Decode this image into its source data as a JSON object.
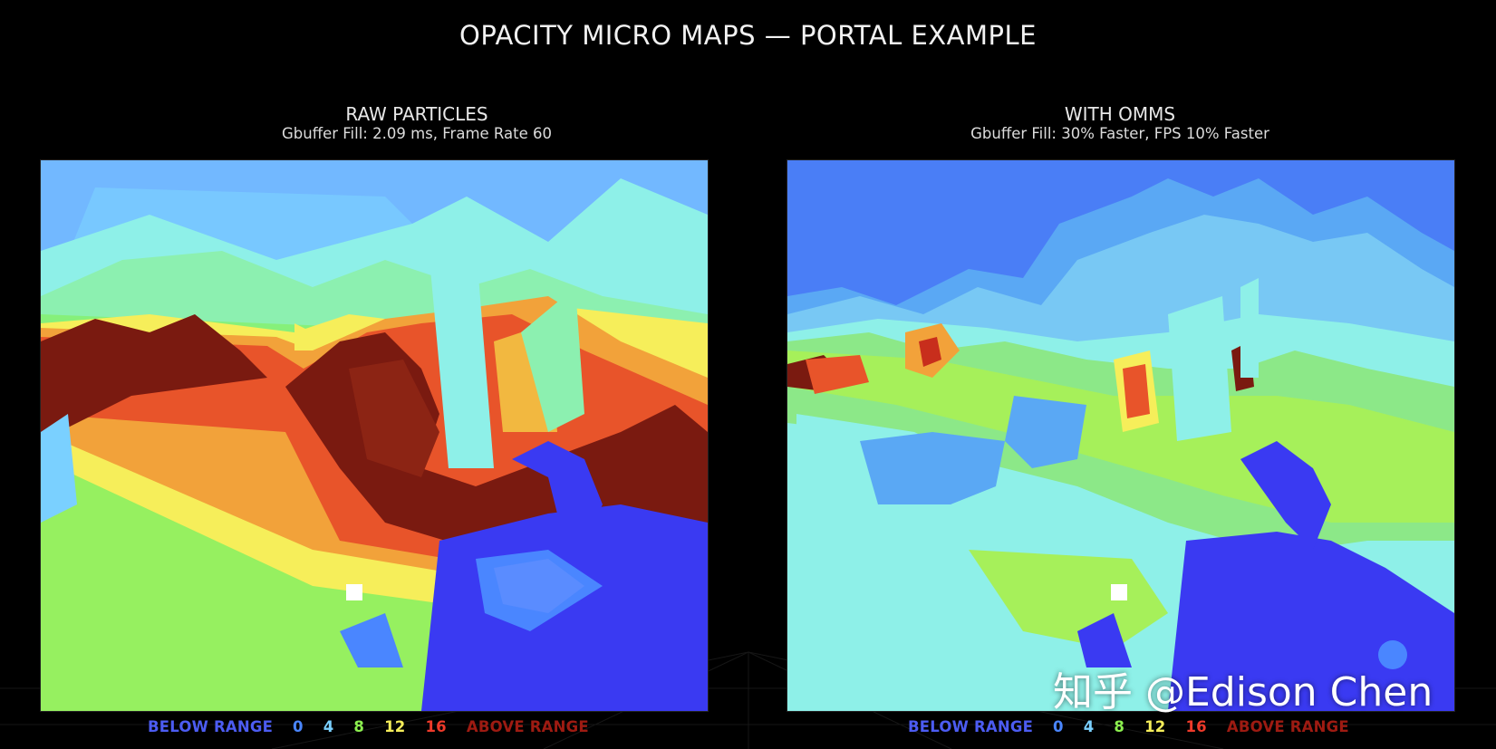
{
  "title": "OPACITY MICRO MAPS — PORTAL EXAMPLE",
  "colors": {
    "background": "#000000",
    "below_range": "#4c5cf2",
    "v0": "#4a86ff",
    "v4": "#7ad0ff",
    "v8": "#8cf04f",
    "v12": "#f6ee5a",
    "v16": "#ee3a2a",
    "above_range": "#9e1b12"
  },
  "panels": [
    {
      "heading": "RAW PARTICLES",
      "subheading": "Gbuffer Fill: 2.09 ms, Frame Rate 60",
      "legend": [
        "BELOW RANGE",
        "0",
        "4",
        "8",
        "12",
        "16",
        "ABOVE RANGE"
      ]
    },
    {
      "heading": "WITH OMMS",
      "subheading": "Gbuffer Fill: 30% Faster, FPS 10% Faster",
      "legend": [
        "BELOW RANGE",
        "0",
        "4",
        "8",
        "12",
        "16",
        "ABOVE RANGE"
      ]
    }
  ],
  "watermark": "知乎 @Edison Chen"
}
